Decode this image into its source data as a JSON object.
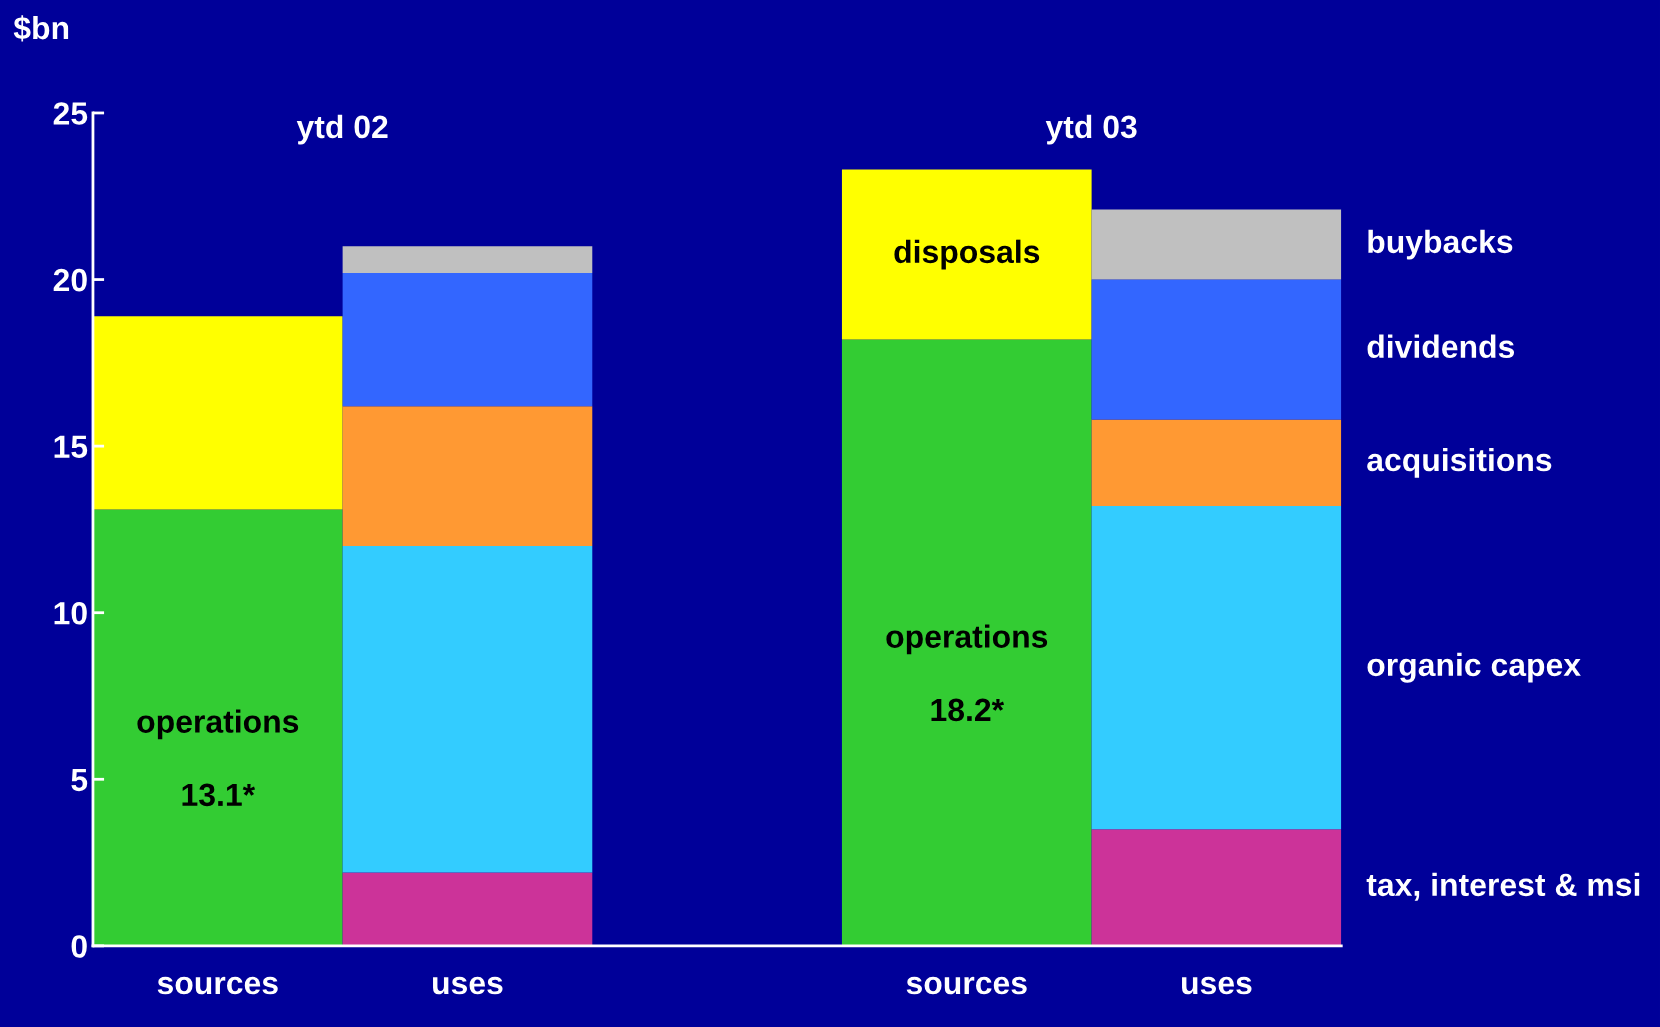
{
  "chart_data": {
    "type": "bar",
    "stacked": true,
    "ylabel": "$bn",
    "categories": [
      "sources",
      "uses",
      null,
      "sources",
      "uses"
    ],
    "series": [
      {
        "name": "operations",
        "color": "#33cc33",
        "values": [
          13.1,
          null,
          null,
          18.2,
          null
        ],
        "value_labels": [
          "13.1*",
          null,
          null,
          "18.2*",
          null
        ]
      },
      {
        "name": "disposals",
        "color": "#ffff00",
        "values": [
          5.8,
          null,
          null,
          5.1,
          null
        ]
      },
      {
        "name": "tax, interest & msi",
        "color": "#cc3399",
        "values": [
          null,
          2.2,
          null,
          null,
          3.5
        ]
      },
      {
        "name": "organic capex",
        "color": "#33ccff",
        "values": [
          null,
          9.8,
          null,
          null,
          9.7
        ]
      },
      {
        "name": "acquisitions",
        "color": "#ff9933",
        "values": [
          null,
          4.2,
          null,
          null,
          2.6
        ]
      },
      {
        "name": "dividends",
        "color": "#3366ff",
        "values": [
          null,
          4.0,
          null,
          null,
          4.2
        ]
      },
      {
        "name": "buybacks",
        "color": "#c0c0c0",
        "values": [
          null,
          0.8,
          null,
          null,
          2.1
        ]
      }
    ],
    "annotations": [
      "ytd 02",
      "ytd 03"
    ],
    "ylim": [
      0,
      25
    ],
    "yticks": [
      0,
      5,
      10,
      15,
      20,
      25
    ],
    "grid": false,
    "legend": false
  }
}
